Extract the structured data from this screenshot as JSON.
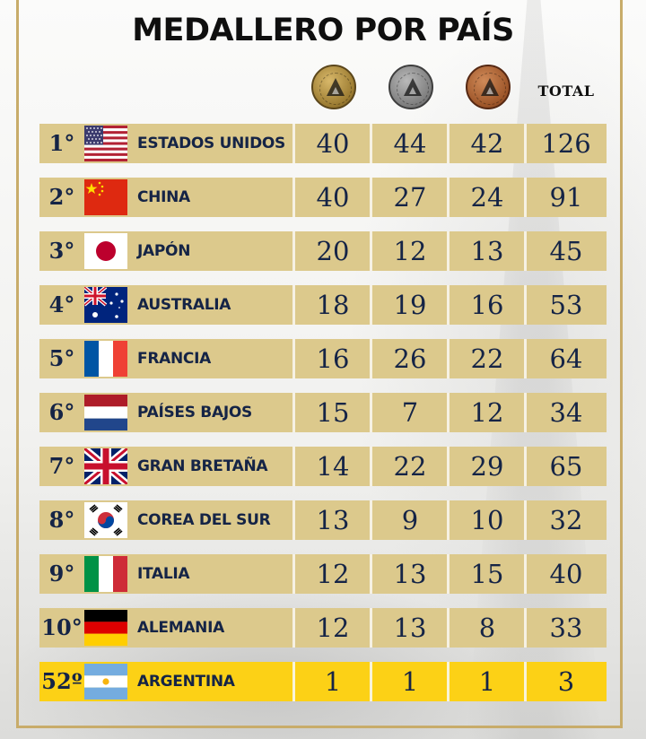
{
  "title": "MEDALLERO POR PAÍS",
  "header": {
    "medals": [
      {
        "name": "gold-medal-icon",
        "color": "#b08c3c"
      },
      {
        "name": "silver-medal-icon",
        "color": "#8a8a8a"
      },
      {
        "name": "bronze-medal-icon",
        "color": "#a55c2c"
      }
    ],
    "total_label": "TOTAL"
  },
  "colors": {
    "row_background": "#dcc98c",
    "highlight_background": "#fcd116",
    "text": "#152446",
    "frame": "#c8ac6a"
  },
  "rows": [
    {
      "rank": "1°",
      "country": "ESTADOS UNIDOS",
      "flag": "usa-flag-icon",
      "gold": "40",
      "silver": "44",
      "bronze": "42",
      "total": "126"
    },
    {
      "rank": "2°",
      "country": "CHINA",
      "flag": "china-flag-icon",
      "gold": "40",
      "silver": "27",
      "bronze": "24",
      "total": "91"
    },
    {
      "rank": "3°",
      "country": "JAPÓN",
      "flag": "japan-flag-icon",
      "gold": "20",
      "silver": "12",
      "bronze": "13",
      "total": "45"
    },
    {
      "rank": "4°",
      "country": "AUSTRALIA",
      "flag": "australia-flag-icon",
      "gold": "18",
      "silver": "19",
      "bronze": "16",
      "total": "53"
    },
    {
      "rank": "5°",
      "country": "FRANCIA",
      "flag": "france-flag-icon",
      "gold": "16",
      "silver": "26",
      "bronze": "22",
      "total": "64"
    },
    {
      "rank": "6°",
      "country": "PAÍSES BAJOS",
      "flag": "netherlands-flag-icon",
      "gold": "15",
      "silver": "7",
      "bronze": "12",
      "total": "34"
    },
    {
      "rank": "7°",
      "country": "GRAN BRETAÑA",
      "flag": "great-britain-flag-icon",
      "gold": "14",
      "silver": "22",
      "bronze": "29",
      "total": "65"
    },
    {
      "rank": "8°",
      "country": "COREA DEL SUR",
      "flag": "south-korea-flag-icon",
      "gold": "13",
      "silver": "9",
      "bronze": "10",
      "total": "32"
    },
    {
      "rank": "9°",
      "country": "ITALIA",
      "flag": "italy-flag-icon",
      "gold": "12",
      "silver": "13",
      "bronze": "15",
      "total": "40"
    },
    {
      "rank": "10°",
      "country": "ALEMANIA",
      "flag": "germany-flag-icon",
      "gold": "12",
      "silver": "13",
      "bronze": "8",
      "total": "33"
    },
    {
      "rank": "52º",
      "country": "ARGENTINA",
      "flag": "argentina-flag-icon",
      "gold": "1",
      "silver": "1",
      "bronze": "1",
      "total": "3",
      "highlight": true
    }
  ]
}
